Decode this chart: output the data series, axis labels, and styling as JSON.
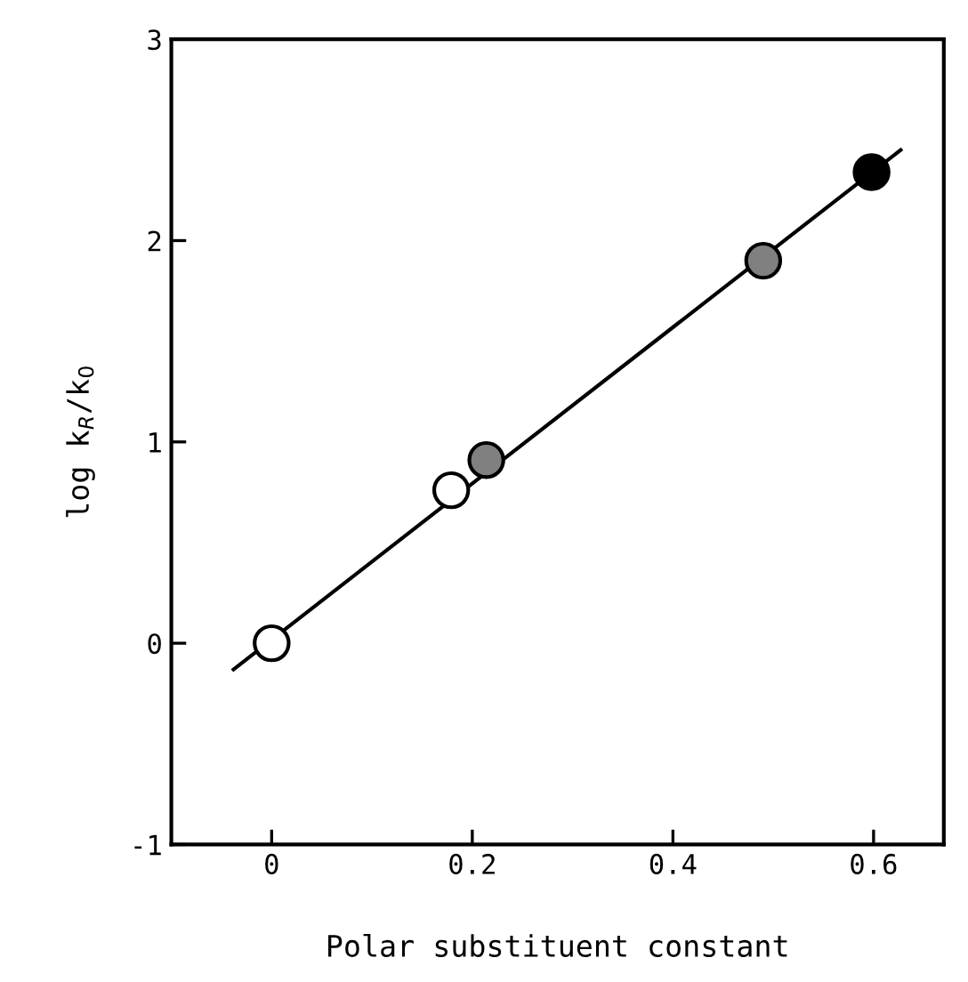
{
  "chart_data": {
    "type": "scatter",
    "xlabel": "Polar substituent constant",
    "ylabel": "log k$_{R}$/k$_{0}$",
    "xlim": [
      -0.1,
      0.67
    ],
    "ylim": [
      -1,
      3
    ],
    "xticks": [
      0,
      0.2,
      0.4,
      0.6
    ],
    "yticks": [
      -1,
      0,
      1,
      2,
      3
    ],
    "grid": false,
    "legend": false,
    "series": [
      {
        "marker": "circle",
        "x": [
          0,
          0.179,
          0.214,
          0.49,
          0.598
        ],
        "values": [
          0,
          0.76,
          0.91,
          1.9,
          2.34
        ],
        "colors": [
          "#ffffff",
          "#ffffff",
          "#808080",
          "#808080",
          "#000000"
        ],
        "color": "#000000"
      },
      {
        "type": "line",
        "marker": "none",
        "line_style": "solid",
        "x": [
          -0.038,
          0.627
        ],
        "values": [
          -0.13,
          2.45
        ],
        "color": "#000000"
      }
    ]
  }
}
